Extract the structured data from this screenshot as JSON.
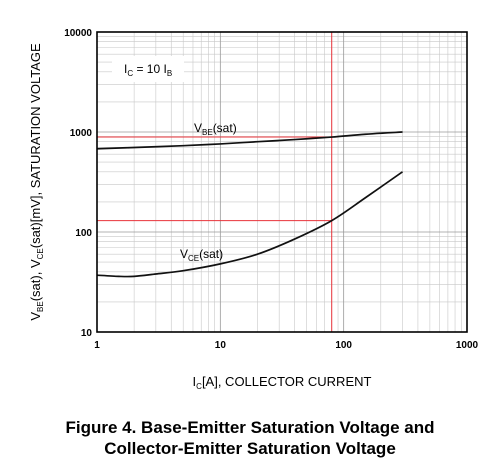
{
  "chart_data": {
    "type": "line",
    "x_scale": "log",
    "y_scale": "log",
    "xlim": [
      1,
      1000
    ],
    "ylim": [
      10,
      10000
    ],
    "grid": true,
    "x_ticks": [
      "1",
      "10",
      "100",
      "1000"
    ],
    "y_ticks": [
      "10",
      "100",
      "1000",
      "10000"
    ],
    "xlabel": {
      "main": "I",
      "sub": "C",
      "rest": "[A], COLLECTOR CURRENT"
    },
    "ylabel": {
      "p1": "V",
      "s1": "BE",
      "p2": "(sat), V",
      "s2": "CE",
      "p3": "(sat)[mV], SATURATION VOLTAGE"
    },
    "annotation": {
      "p1": "I",
      "s1": "C",
      "p2": " = 10 I",
      "s2": "B"
    },
    "series": [
      {
        "label": {
          "p1": "V",
          "s1": "BE",
          "p2": "(sat)"
        },
        "points": [
          [
            1,
            680
          ],
          [
            2,
            700
          ],
          [
            5,
            730
          ],
          [
            10,
            760
          ],
          [
            20,
            800
          ],
          [
            40,
            840
          ],
          [
            80,
            890
          ],
          [
            150,
            950
          ],
          [
            300,
            1000
          ]
        ]
      },
      {
        "label": {
          "p1": "V",
          "s1": "CE",
          "p2": "(sat)"
        },
        "points": [
          [
            1,
            37
          ],
          [
            1.5,
            36
          ],
          [
            2,
            36
          ],
          [
            3,
            38
          ],
          [
            5,
            41
          ],
          [
            10,
            48
          ],
          [
            20,
            60
          ],
          [
            40,
            85
          ],
          [
            80,
            130
          ],
          [
            150,
            220
          ],
          [
            300,
            400
          ]
        ]
      }
    ],
    "markers": [
      {
        "x": 80,
        "y": 130
      },
      {
        "x": 80,
        "y": 890
      }
    ],
    "marker_color": "#e8333a"
  },
  "caption": {
    "line1": "Figure 4. Base-Emitter Saturation Voltage and",
    "line2": "Collector-Emitter Saturation Voltage"
  }
}
